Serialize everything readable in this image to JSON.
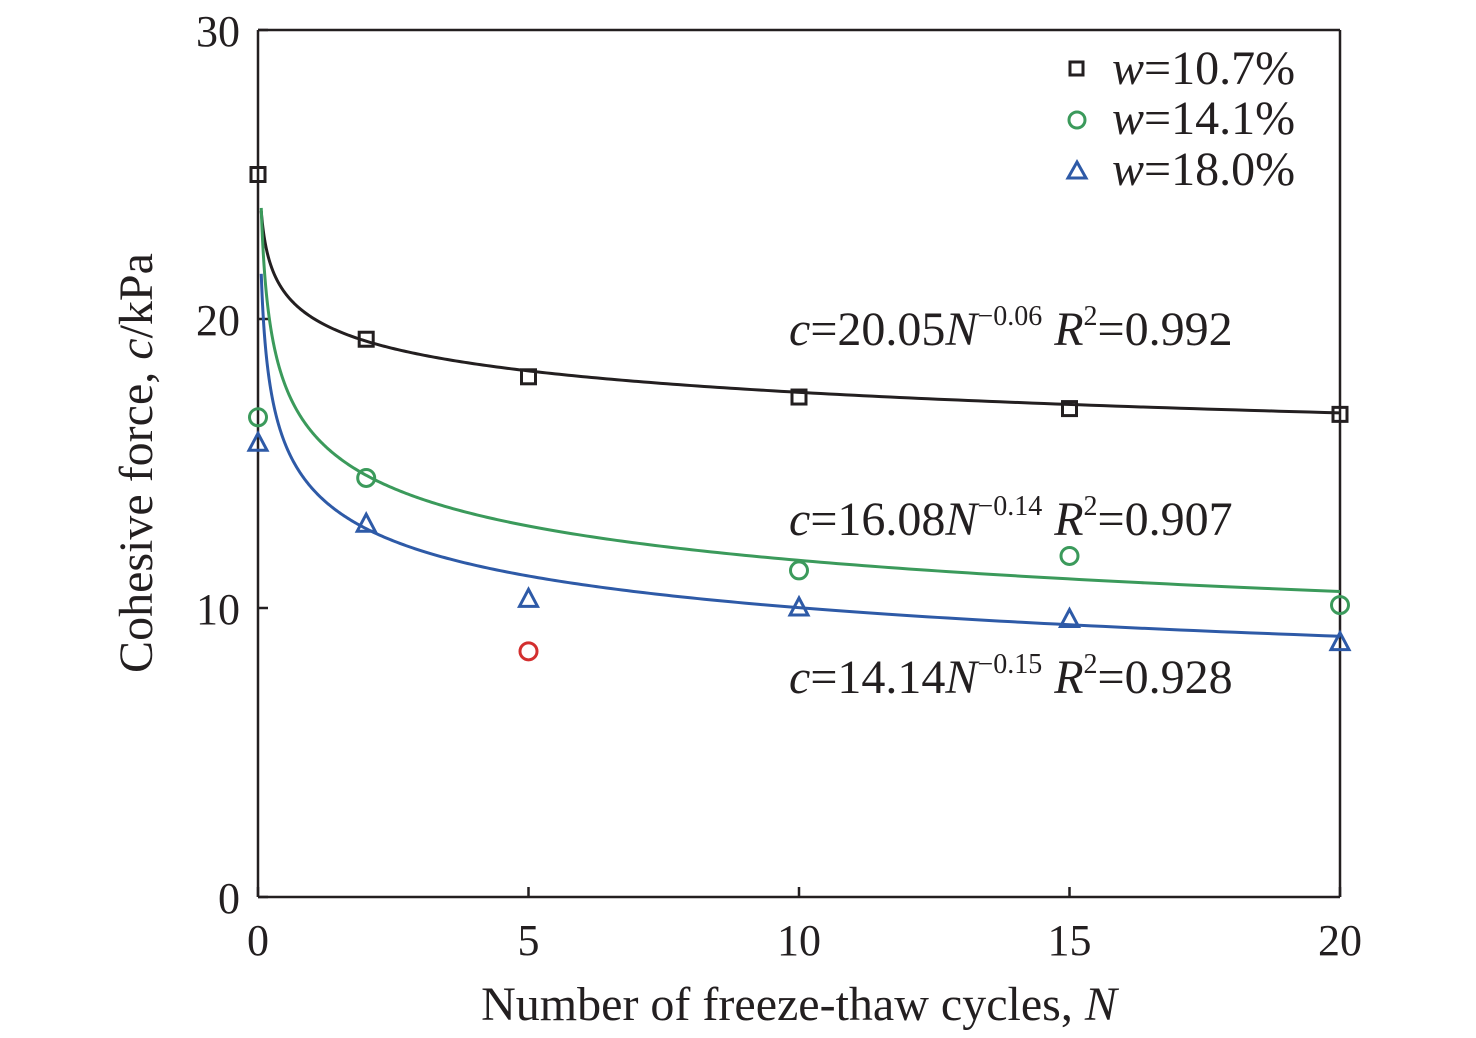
{
  "chart_data": {
    "type": "scatter",
    "xlabel": "Number of freeze-thaw cycles, ",
    "xlabel_var": "N",
    "ylabel": "Cohesive force, ",
    "ylabel_var": "c",
    "ylabel_unit": "/kPa",
    "xlim": [
      0,
      20
    ],
    "ylim": [
      0,
      30
    ],
    "xticks": [
      0,
      5,
      10,
      15,
      20
    ],
    "yticks": [
      0,
      10,
      20,
      30
    ],
    "grid": false,
    "legend_position": "top-right",
    "series": [
      {
        "name": "w=10.7%",
        "var": "w",
        "value_text": "=10.7%",
        "marker": "square",
        "color": "#231f20",
        "x": [
          0,
          2,
          5,
          10,
          15,
          20
        ],
        "y": [
          25.0,
          19.3,
          18.0,
          17.3,
          16.9,
          16.7
        ],
        "fit": {
          "coef": 20.05,
          "exp": -0.06,
          "parts": {
            "c": "c",
            "coef": "=20.05",
            "N": "N",
            "exp": "−0.06",
            "R": "R",
            "two": "2",
            "r2": "=0.992"
          }
        }
      },
      {
        "name": "w=14.1%",
        "var": "w",
        "value_text": "=14.1%",
        "marker": "circle",
        "color": "#3b9a5b",
        "x": [
          0,
          2,
          10,
          15,
          20
        ],
        "y": [
          16.6,
          14.5,
          11.3,
          11.8,
          10.1
        ],
        "fit": {
          "coef": 16.08,
          "exp": -0.14,
          "parts": {
            "c": "c",
            "coef": "=16.08",
            "N": "N",
            "exp": "−0.14",
            "R": "R",
            "two": "2",
            "r2": "=0.907"
          }
        }
      },
      {
        "name": "w=18.0%",
        "var": "w",
        "value_text": "=18.0%",
        "marker": "triangle",
        "color": "#2e5aa7",
        "x": [
          0,
          2,
          5,
          10,
          15,
          20
        ],
        "y": [
          15.7,
          12.9,
          10.3,
          10.0,
          9.6,
          8.8
        ],
        "fit": {
          "coef": 14.14,
          "exp": -0.15,
          "parts": {
            "c": "c",
            "coef": "=14.14",
            "N": "N",
            "exp": "−0.15",
            "R": "R",
            "two": "2",
            "r2": "=0.928"
          }
        }
      }
    ],
    "outliers": [
      {
        "x": 5,
        "y": 8.5,
        "marker": "circle",
        "color": "#d32f2f",
        "note": "excluded point (w=14.1%)"
      }
    ]
  }
}
